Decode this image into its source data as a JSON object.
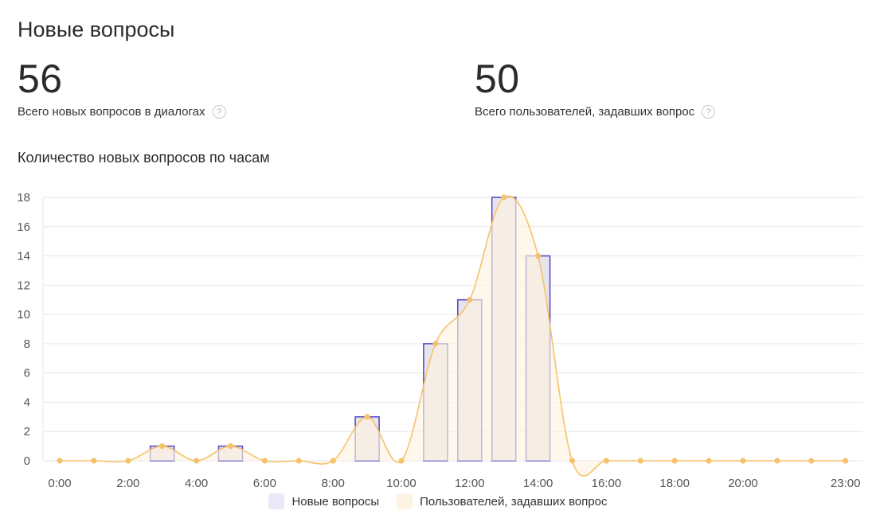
{
  "header": {
    "title": "Новые вопросы"
  },
  "stats": [
    {
      "value": "56",
      "label": "Всего новых вопросов в диалогах",
      "help": "?"
    },
    {
      "value": "50",
      "label": "Всего пользователей, задавших вопрос",
      "help": "?"
    }
  ],
  "chart_title": "Количество новых вопросов по часам",
  "chart_data": {
    "type": "bar",
    "title": "Количество новых вопросов по часам",
    "x": [
      0,
      1,
      2,
      3,
      4,
      5,
      6,
      7,
      8,
      9,
      10,
      11,
      12,
      13,
      14,
      15,
      16,
      17,
      18,
      19,
      20,
      21,
      22,
      23
    ],
    "x_tick_labels": [
      {
        "x": 0,
        "label": "0:00"
      },
      {
        "x": 2,
        "label": "2:00"
      },
      {
        "x": 4,
        "label": "4:00"
      },
      {
        "x": 6,
        "label": "6:00"
      },
      {
        "x": 8,
        "label": "8:00"
      },
      {
        "x": 10,
        "label": "10:00"
      },
      {
        "x": 12,
        "label": "12:00"
      },
      {
        "x": 14,
        "label": "14:00"
      },
      {
        "x": 16,
        "label": "16:00"
      },
      {
        "x": 18,
        "label": "18:00"
      },
      {
        "x": 20,
        "label": "20:00"
      },
      {
        "x": 23,
        "label": "23:00"
      }
    ],
    "ylim": [
      0,
      18
    ],
    "yticks": [
      0,
      2,
      4,
      6,
      8,
      10,
      12,
      14,
      16,
      18
    ],
    "grid": true,
    "legend_position": "bottom-center",
    "series": [
      {
        "name": "Новые вопросы",
        "type": "bar",
        "color": "#5b4fc7",
        "fill": "#e8e4ec",
        "values": [
          0,
          0,
          0,
          1,
          0,
          1,
          0,
          0,
          0,
          3,
          0,
          8,
          11,
          18,
          14,
          0,
          0,
          0,
          0,
          0,
          0,
          0,
          0,
          0
        ]
      },
      {
        "name": "Пользователей, задавших вопрос",
        "type": "area",
        "smooth": true,
        "color": "#f5c26b",
        "fill": "#fdf3e2",
        "values": [
          0,
          0,
          0,
          1,
          0,
          1,
          0,
          0,
          0,
          3,
          0,
          8,
          11,
          18,
          14,
          0,
          0,
          0,
          0,
          0,
          0,
          0,
          0,
          0
        ]
      }
    ]
  }
}
